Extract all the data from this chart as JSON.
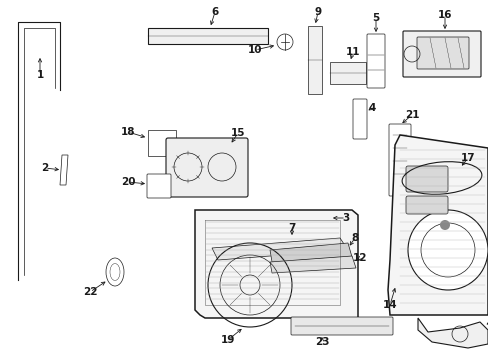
{
  "bg_color": "#ffffff",
  "line_color": "#1a1a1a",
  "fs": 7.5,
  "figsize": [
    4.89,
    3.6
  ],
  "dpi": 100
}
